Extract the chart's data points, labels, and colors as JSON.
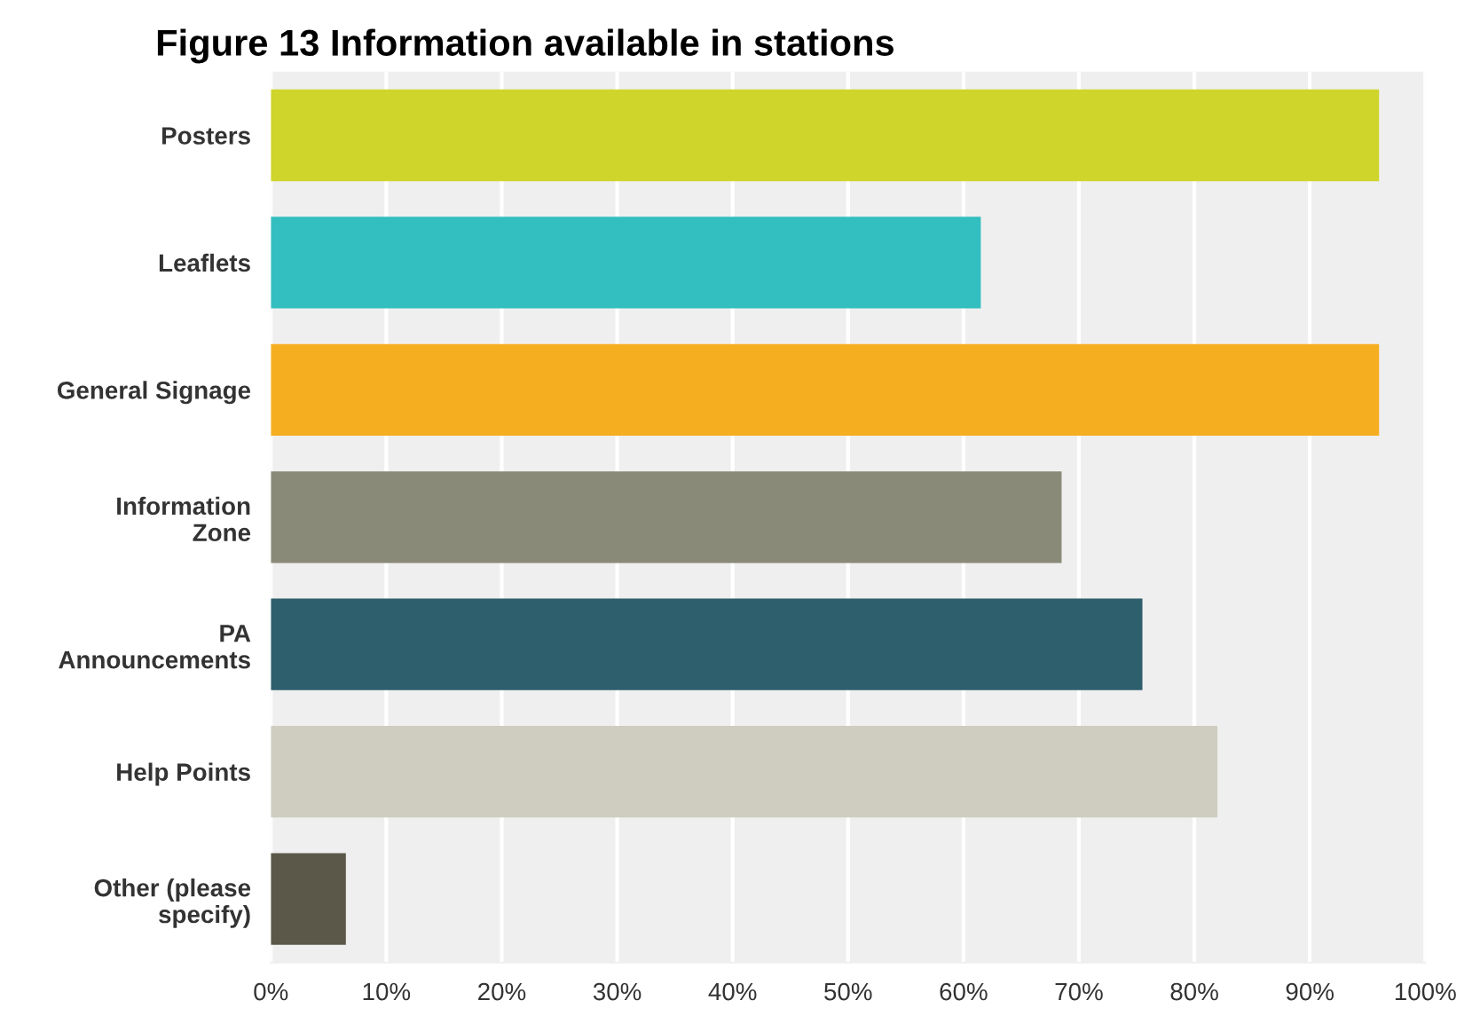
{
  "chart_data": {
    "type": "bar",
    "orientation": "horizontal",
    "title": "Figure 13 Information available in stations",
    "categories": [
      "Posters",
      "Leaflets",
      "General Signage",
      "Information\nZone",
      "PA\nAnnouncements",
      "Help Points",
      "Other (please\nspecify)"
    ],
    "values": [
      96,
      61.5,
      96,
      68.5,
      75.5,
      82,
      6.5
    ],
    "colors": [
      "#cfd52a",
      "#33bec0",
      "#f6ae21",
      "#8a8a78",
      "#2e5f6d",
      "#cfcdbf",
      "#5b5849"
    ],
    "xlim": [
      0,
      100
    ],
    "xticks": [
      {
        "value": 0,
        "label": "0%"
      },
      {
        "value": 10,
        "label": "10%"
      },
      {
        "value": 20,
        "label": "20%"
      },
      {
        "value": 30,
        "label": "30%"
      },
      {
        "value": 40,
        "label": "40%"
      },
      {
        "value": 50,
        "label": "50%"
      },
      {
        "value": 60,
        "label": "60%"
      },
      {
        "value": 70,
        "label": "70%"
      },
      {
        "value": 80,
        "label": "80%"
      },
      {
        "value": 90,
        "label": "90%"
      },
      {
        "value": 100,
        "label": "100%"
      }
    ],
    "grid": "x",
    "legend": false
  }
}
